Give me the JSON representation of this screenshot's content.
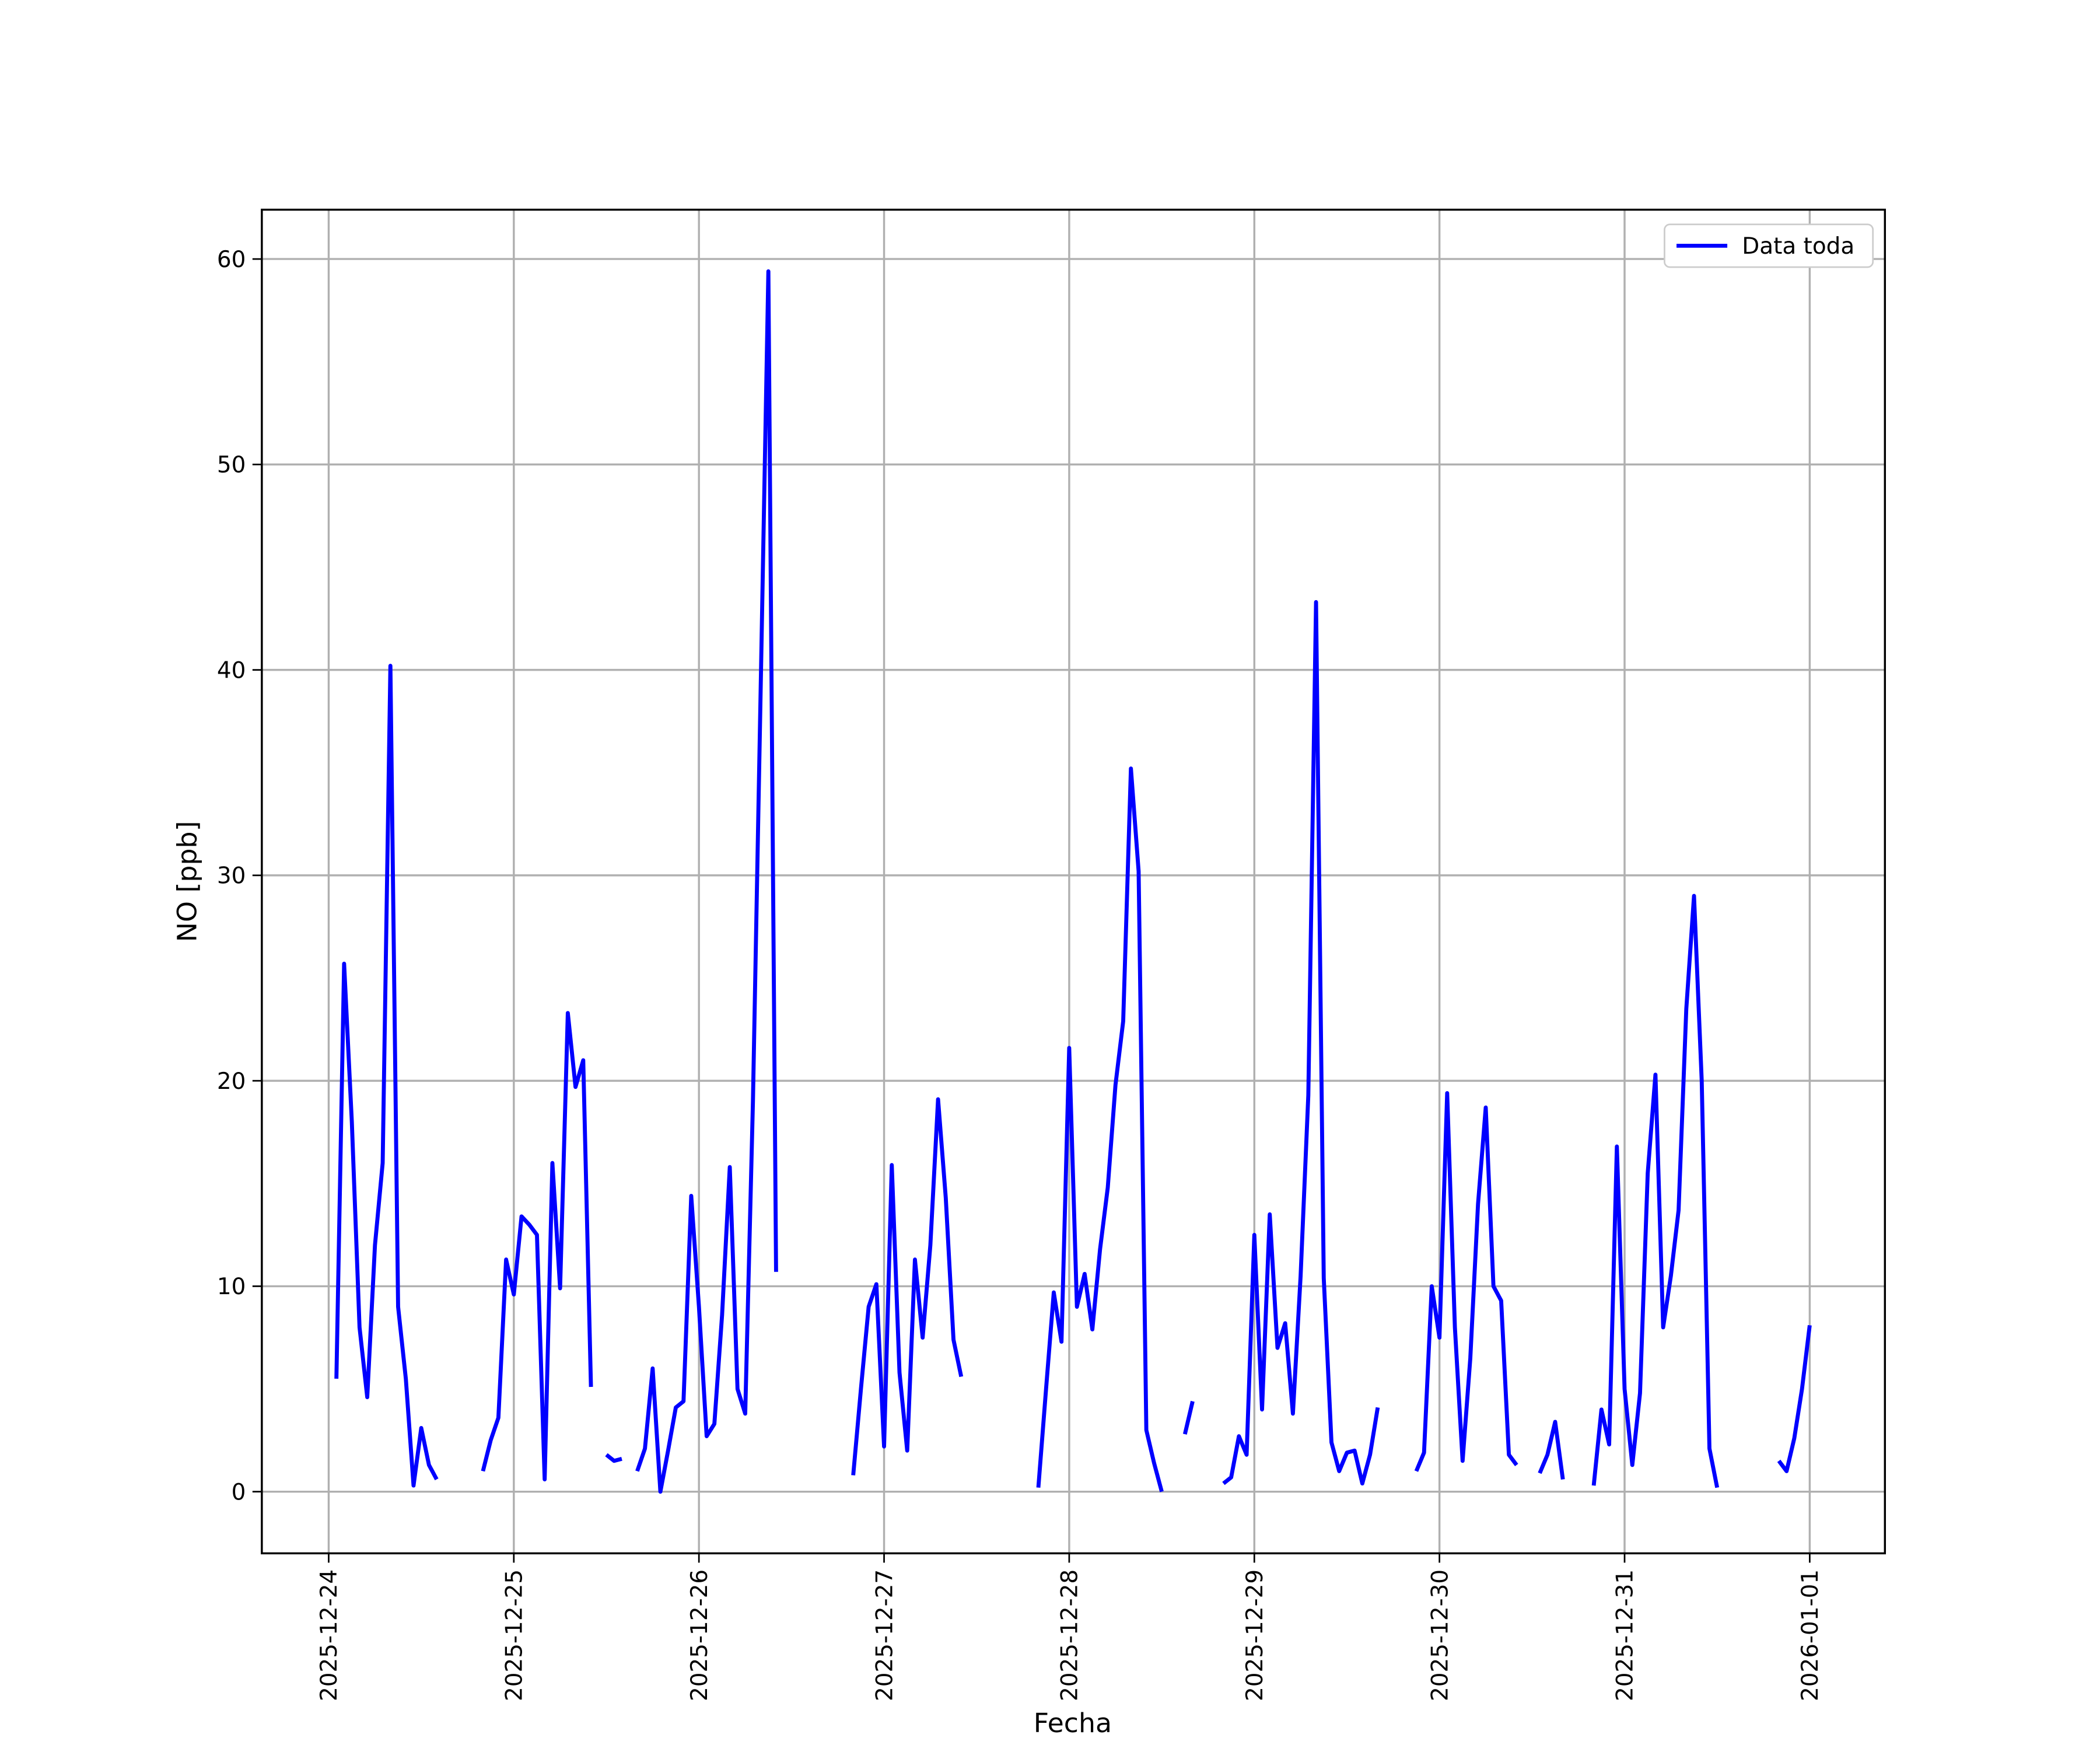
{
  "chart_data": {
    "type": "line",
    "xlabel": "Fecha",
    "ylabel": "NO [ppb]",
    "x": [
      "2025-12-24 01:00",
      "2025-12-24 02:00",
      "2025-12-24 03:00",
      "2025-12-24 04:00",
      "2025-12-24 05:00",
      "2025-12-24 06:00",
      "2025-12-24 07:00",
      "2025-12-24 08:00",
      "2025-12-24 09:00",
      "2025-12-24 10:00",
      "2025-12-24 11:00",
      "2025-12-24 12:00",
      "2025-12-24 13:00",
      "2025-12-24 14:00",
      "2025-12-24 15:00",
      "2025-12-24 20:00",
      "2025-12-24 21:00",
      "2025-12-24 22:00",
      "2025-12-24 23:00",
      "2025-12-25 00:00",
      "2025-12-25 01:00",
      "2025-12-25 02:00",
      "2025-12-25 03:00",
      "2025-12-25 04:00",
      "2025-12-25 05:00",
      "2025-12-25 06:00",
      "2025-12-25 07:00",
      "2025-12-25 08:00",
      "2025-12-25 09:00",
      "2025-12-25 10:00",
      "2025-12-25 11:00",
      "2025-12-25 12:00",
      "2025-12-25 13:00",
      "2025-12-25 14:00",
      "2025-12-25 15:00",
      "2025-12-25 16:00",
      "2025-12-25 17:00",
      "2025-12-25 18:00",
      "2025-12-25 19:00",
      "2025-12-25 20:00",
      "2025-12-25 21:00",
      "2025-12-25 22:00",
      "2025-12-25 23:00",
      "2025-12-26 00:00",
      "2025-12-26 01:00",
      "2025-12-26 02:00",
      "2025-12-26 03:00",
      "2025-12-26 04:00",
      "2025-12-26 05:00",
      "2025-12-26 06:00",
      "2025-12-26 07:00",
      "2025-12-26 08:00",
      "2025-12-26 09:00",
      "2025-12-26 10:00",
      "2025-12-26 11:00",
      "2025-12-26 20:00",
      "2025-12-26 21:00",
      "2025-12-26 22:00",
      "2025-12-26 23:00",
      "2025-12-27 00:00",
      "2025-12-27 01:00",
      "2025-12-27 02:00",
      "2025-12-27 03:00",
      "2025-12-27 04:00",
      "2025-12-27 05:00",
      "2025-12-27 06:00",
      "2025-12-27 07:00",
      "2025-12-27 08:00",
      "2025-12-27 09:00",
      "2025-12-27 10:00",
      "2025-12-27 11:00",
      "2025-12-27 20:00",
      "2025-12-27 21:00",
      "2025-12-27 22:00",
      "2025-12-27 23:00",
      "2025-12-28 00:00",
      "2025-12-28 01:00",
      "2025-12-28 02:00",
      "2025-12-28 03:00",
      "2025-12-28 04:00",
      "2025-12-28 05:00",
      "2025-12-28 06:00",
      "2025-12-28 07:00",
      "2025-12-28 08:00",
      "2025-12-28 09:00",
      "2025-12-28 10:00",
      "2025-12-28 11:00",
      "2025-12-28 12:00",
      "2025-12-28 13:00",
      "2025-12-28 15:00",
      "2025-12-28 16:00",
      "2025-12-28 17:00",
      "2025-12-28 20:00",
      "2025-12-28 21:00",
      "2025-12-28 22:00",
      "2025-12-28 23:00",
      "2025-12-29 00:00",
      "2025-12-29 01:00",
      "2025-12-29 02:00",
      "2025-12-29 03:00",
      "2025-12-29 04:00",
      "2025-12-29 05:00",
      "2025-12-29 06:00",
      "2025-12-29 07:00",
      "2025-12-29 08:00",
      "2025-12-29 09:00",
      "2025-12-29 10:00",
      "2025-12-29 11:00",
      "2025-12-29 12:00",
      "2025-12-29 13:00",
      "2025-12-29 14:00",
      "2025-12-29 15:00",
      "2025-12-29 16:00",
      "2025-12-29 17:00",
      "2025-12-29 21:00",
      "2025-12-29 22:00",
      "2025-12-29 23:00",
      "2025-12-30 00:00",
      "2025-12-30 01:00",
      "2025-12-30 02:00",
      "2025-12-30 03:00",
      "2025-12-30 04:00",
      "2025-12-30 05:00",
      "2025-12-30 06:00",
      "2025-12-30 07:00",
      "2025-12-30 08:00",
      "2025-12-30 09:00",
      "2025-12-30 10:00",
      "2025-12-30 11:00",
      "2025-12-30 13:00",
      "2025-12-30 14:00",
      "2025-12-30 15:00",
      "2025-12-30 16:00",
      "2025-12-30 17:00",
      "2025-12-30 20:00",
      "2025-12-30 21:00",
      "2025-12-30 22:00",
      "2025-12-30 23:00",
      "2025-12-31 00:00",
      "2025-12-31 01:00",
      "2025-12-31 02:00",
      "2025-12-31 03:00",
      "2025-12-31 04:00",
      "2025-12-31 05:00",
      "2025-12-31 06:00",
      "2025-12-31 07:00",
      "2025-12-31 08:00",
      "2025-12-31 09:00",
      "2025-12-31 10:00",
      "2025-12-31 11:00",
      "2025-12-31 12:00",
      "2025-12-31 13:00",
      "2025-12-31 20:00",
      "2025-12-31 21:00",
      "2025-12-31 22:00",
      "2025-12-31 23:00",
      "2026-01-01 00:00"
    ],
    "series": [
      {
        "name": "Data toda",
        "color": "#0000ff",
        "values": [
          5.5,
          25.7,
          18,
          8,
          4.6,
          12,
          16,
          40.2,
          9,
          5.5,
          0.3,
          3.1,
          1.3,
          0.6,
          null,
          1.0,
          2.5,
          3.6,
          11.3,
          9.6,
          13.4,
          13,
          12.5,
          0.6,
          16,
          9.9,
          23.3,
          19.7,
          21,
          5.1,
          null,
          1.8,
          1.5,
          1.6,
          null,
          1.0,
          2.1,
          6,
          0,
          2,
          4.1,
          4.4,
          14.4,
          9,
          2.7,
          3.3,
          8.6,
          15.8,
          5,
          3.8,
          19,
          39,
          59.4,
          10.7,
          null,
          0.8,
          5,
          9,
          10.1,
          2.2,
          15.9,
          5.8,
          2,
          11.3,
          7.5,
          12,
          19.1,
          14.3,
          7.4,
          5.6,
          null,
          0.2,
          5,
          9.7,
          7.3,
          21.6,
          9,
          10.6,
          7.9,
          11.8,
          14.8,
          19.8,
          22.9,
          35.2,
          30.2,
          3,
          1.4,
          0,
          null,
          2.8,
          4.4,
          null,
          0.4,
          0.7,
          2.7,
          1.8,
          12.5,
          4,
          13.5,
          7,
          8.2,
          3.8,
          10.5,
          19.3,
          43.3,
          10.4,
          2.4,
          1,
          1.9,
          2,
          0.4,
          1.8,
          4.1,
          null,
          1.0,
          1.9,
          10,
          7.5,
          19.4,
          8,
          1.5,
          6.5,
          14,
          18.7,
          10,
          9.3,
          1.8,
          1.3,
          null,
          0.9,
          1.8,
          3.4,
          0.6,
          null,
          0.3,
          4,
          2.3,
          16.8,
          5,
          1.3,
          4.8,
          15.5,
          20.3,
          8,
          10.5,
          13.7,
          23.5,
          29,
          20,
          2.1,
          0.2,
          null,
          1.5,
          1,
          2.6,
          5,
          8.1
        ]
      }
    ],
    "xlim": [
      "2025-12-23 15:20",
      "2026-01-01 09:45"
    ],
    "xticks": [
      "2025-12-24",
      "2025-12-25",
      "2025-12-26",
      "2025-12-27",
      "2025-12-28",
      "2025-12-29",
      "2025-12-30",
      "2025-12-31",
      "2026-01-01"
    ],
    "ylim": [
      -3,
      62.4
    ],
    "yticks": [
      0,
      10,
      20,
      30,
      40,
      50,
      60
    ],
    "grid": true,
    "legend": "upper right"
  }
}
